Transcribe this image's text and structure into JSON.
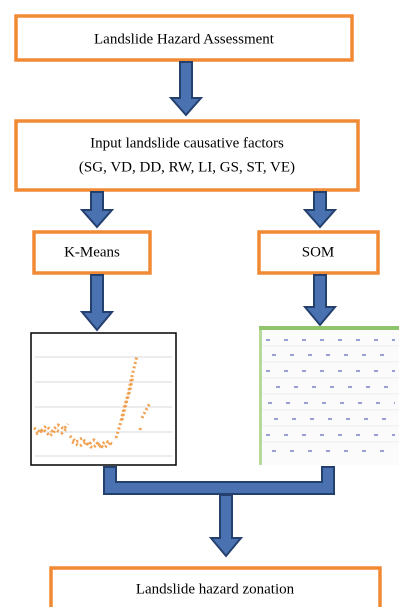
{
  "nodes": [
    {
      "label": "Landslide Hazard Assessment"
    },
    {
      "lines": [
        "Input landslide causative factors",
        "(SG, VD, DD, RW, LI, GS, ST, VE)"
      ]
    },
    {
      "label": "K-Means"
    },
    {
      "label": "SOM"
    },
    {
      "label": "Landslide hazard zonation"
    }
  ]
}
